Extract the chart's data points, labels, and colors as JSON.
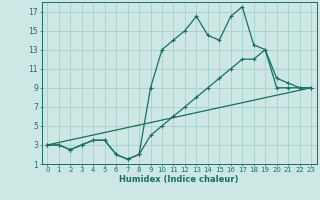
{
  "xlabel": "Humidex (Indice chaleur)",
  "bg_color": "#cde8e4",
  "grid_color": "#aad4cc",
  "line_color": "#1a6e60",
  "xlim": [
    -0.5,
    23.5
  ],
  "ylim": [
    1,
    18
  ],
  "xticks": [
    0,
    1,
    2,
    3,
    4,
    5,
    6,
    7,
    8,
    9,
    10,
    11,
    12,
    13,
    14,
    15,
    16,
    17,
    18,
    19,
    20,
    21,
    22,
    23
  ],
  "yticks": [
    1,
    3,
    5,
    7,
    9,
    11,
    13,
    15,
    17
  ],
  "line1_x": [
    0,
    1,
    2,
    3,
    4,
    5,
    6,
    7,
    8,
    9,
    10,
    11,
    12,
    13,
    14,
    15,
    16,
    17,
    18,
    19,
    20,
    21,
    22,
    23
  ],
  "line1_y": [
    3,
    3,
    2.5,
    3,
    3.5,
    3.5,
    2,
    1.5,
    2,
    9,
    13,
    14,
    15,
    16.5,
    14.5,
    14,
    16.5,
    17.5,
    13.5,
    13,
    10,
    9.5,
    9,
    9
  ],
  "line2_x": [
    0,
    1,
    2,
    3,
    4,
    5,
    6,
    7,
    8,
    9,
    10,
    11,
    12,
    13,
    14,
    15,
    16,
    17,
    18,
    19,
    20,
    21,
    22,
    23
  ],
  "line2_y": [
    3,
    3,
    2.5,
    3,
    3.5,
    3.5,
    2,
    1.5,
    2,
    4,
    5,
    6,
    7,
    8,
    9,
    10,
    11,
    12,
    12,
    13,
    9,
    9,
    9,
    9
  ],
  "line3_x": [
    0,
    23
  ],
  "line3_y": [
    3,
    9
  ]
}
